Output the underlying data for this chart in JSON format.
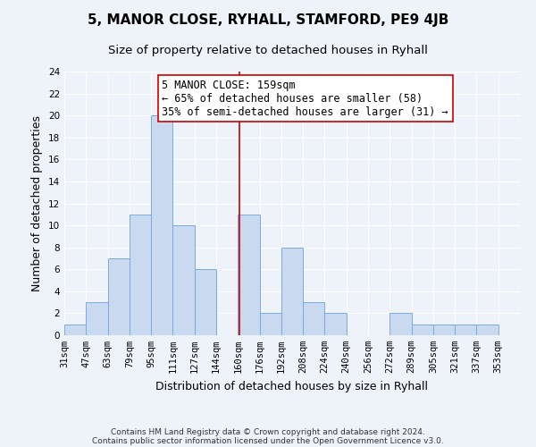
{
  "title": "5, MANOR CLOSE, RYHALL, STAMFORD, PE9 4JB",
  "subtitle": "Size of property relative to detached houses in Ryhall",
  "xlabel": "Distribution of detached houses by size in Ryhall",
  "ylabel": "Number of detached properties",
  "bin_labels": [
    "31sqm",
    "47sqm",
    "63sqm",
    "79sqm",
    "95sqm",
    "111sqm",
    "127sqm",
    "144sqm",
    "160sqm",
    "176sqm",
    "192sqm",
    "208sqm",
    "224sqm",
    "240sqm",
    "256sqm",
    "272sqm",
    "289sqm",
    "305sqm",
    "321sqm",
    "337sqm",
    "353sqm"
  ],
  "bar_heights": [
    1,
    3,
    7,
    11,
    20,
    10,
    6,
    0,
    11,
    2,
    8,
    3,
    2,
    0,
    0,
    2,
    1,
    1,
    1,
    1,
    0
  ],
  "bar_color": "#c9d9f0",
  "bar_edge_color": "#7baae0",
  "reference_line_color": "#cc0000",
  "annotation_line1": "5 MANOR CLOSE: 159sqm",
  "annotation_line2": "← 65% of detached houses are smaller (58)",
  "annotation_line3": "35% of semi-detached houses are larger (31) →",
  "annotation_box_color": "#ffffff",
  "annotation_box_edge_color": "#cc0000",
  "ylim": [
    0,
    24
  ],
  "yticks": [
    0,
    2,
    4,
    6,
    8,
    10,
    12,
    14,
    16,
    18,
    20,
    22,
    24
  ],
  "footer_line1": "Contains HM Land Registry data © Crown copyright and database right 2024.",
  "footer_line2": "Contains public sector information licensed under the Open Government Licence v3.0.",
  "background_color": "#eef2f9",
  "grid_color": "#ffffff",
  "title_fontsize": 11,
  "subtitle_fontsize": 9.5,
  "axis_label_fontsize": 9,
  "tick_fontsize": 7.5,
  "annotation_fontsize": 8.5,
  "footer_fontsize": 6.5
}
